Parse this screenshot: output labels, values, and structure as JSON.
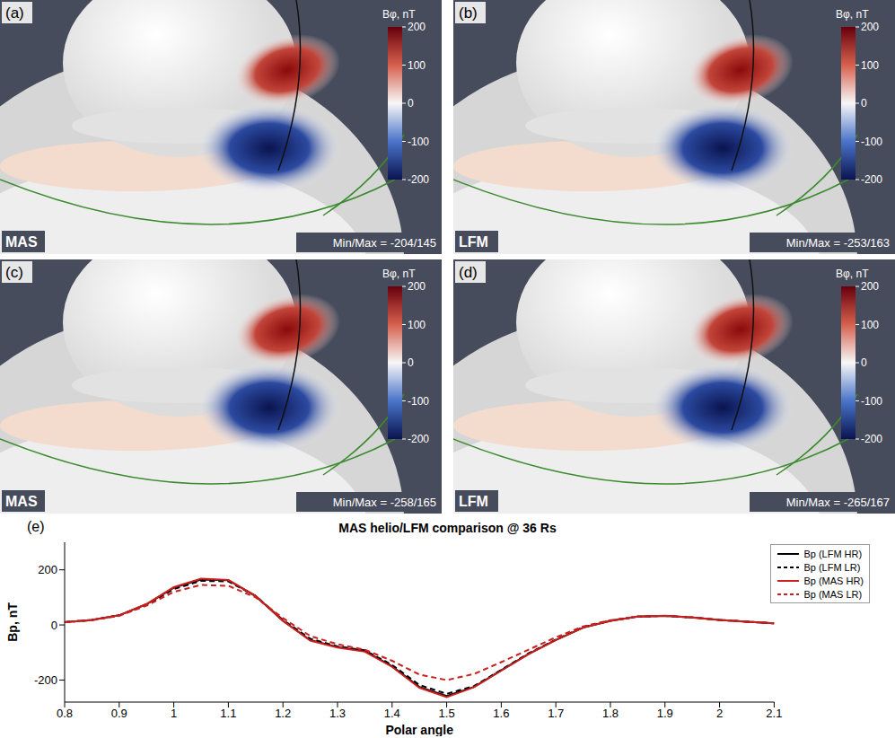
{
  "panels": [
    {
      "label": "(a)",
      "model": "MAS",
      "colorbar": {
        "title": "Bφ, nT",
        "range": [
          -200,
          200
        ],
        "ticks": [
          200,
          100,
          0,
          -100,
          -200
        ]
      },
      "min_max": "Min/Max = -204/145"
    },
    {
      "label": "(b)",
      "model": "LFM",
      "colorbar": {
        "title": "Bφ, nT",
        "range": [
          -200,
          200
        ],
        "ticks": [
          200,
          100,
          0,
          -100,
          -200
        ]
      },
      "min_max": "Min/Max = -253/163"
    },
    {
      "label": "(c)",
      "model": "MAS",
      "colorbar": {
        "title": "Bφ, nT",
        "range": [
          -200,
          200
        ],
        "ticks": [
          200,
          100,
          0,
          -100,
          -200
        ]
      },
      "min_max": "Min/Max = -258/165"
    },
    {
      "label": "(d)",
      "model": "LFM",
      "colorbar": {
        "title": "Bφ, nT",
        "range": [
          -200,
          200
        ],
        "ticks": [
          200,
          100,
          0,
          -100,
          -200
        ]
      },
      "min_max": "Min/Max = -265/167"
    }
  ],
  "chart_data": {
    "type": "line",
    "label": "(e)",
    "title": "MAS helio/LFM comparison @ 36 Rs",
    "x_label": "Polar angle",
    "y_label": "Bp, nT",
    "x": [
      0.8,
      0.85,
      0.9,
      0.95,
      1.0,
      1.05,
      1.1,
      1.15,
      1.2,
      1.25,
      1.3,
      1.35,
      1.4,
      1.45,
      1.5,
      1.55,
      1.6,
      1.65,
      1.7,
      1.75,
      1.8,
      1.85,
      1.9,
      1.95,
      2.0,
      2.05,
      2.1
    ],
    "series": [
      {
        "name": "Bp (LFM HR)",
        "color": "#000000",
        "line_style": "solid",
        "values": [
          10,
          18,
          35,
          75,
          135,
          165,
          162,
          105,
          15,
          -55,
          -80,
          -95,
          -150,
          -225,
          -258,
          -225,
          -165,
          -105,
          -55,
          -10,
          15,
          30,
          33,
          27,
          18,
          12,
          6
        ]
      },
      {
        "name": "Bp (LFM LR)",
        "color": "#000000",
        "line_style": "dashed",
        "values": [
          10,
          18,
          35,
          73,
          130,
          160,
          158,
          105,
          18,
          -50,
          -78,
          -92,
          -145,
          -218,
          -250,
          -222,
          -163,
          -103,
          -53,
          -8,
          16,
          30,
          33,
          27,
          18,
          12,
          6
        ]
      },
      {
        "name": "Bp (MAS HR)",
        "color": "#cc1f1f",
        "line_style": "solid",
        "values": [
          10,
          18,
          35,
          76,
          137,
          168,
          163,
          105,
          15,
          -57,
          -82,
          -97,
          -152,
          -228,
          -262,
          -226,
          -166,
          -106,
          -55,
          -10,
          15,
          30,
          34,
          27,
          18,
          12,
          6
        ]
      },
      {
        "name": "Bp (MAS LR)",
        "color": "#cc1f1f",
        "line_style": "dashed",
        "values": [
          10,
          17,
          33,
          70,
          120,
          145,
          142,
          100,
          25,
          -40,
          -70,
          -90,
          -130,
          -180,
          -200,
          -178,
          -135,
          -90,
          -45,
          -5,
          17,
          30,
          33,
          27,
          18,
          12,
          6
        ]
      }
    ],
    "xlim": [
      0.8,
      2.1
    ],
    "xticks": [
      0.8,
      0.9,
      1,
      1.1,
      1.2,
      1.3,
      1.4,
      1.5,
      1.6,
      1.7,
      1.8,
      1.9,
      2,
      2.1
    ],
    "ylim": [
      -280,
      300
    ],
    "yticks": [
      -200,
      0,
      200
    ],
    "legend": "upper right",
    "grid": false
  }
}
